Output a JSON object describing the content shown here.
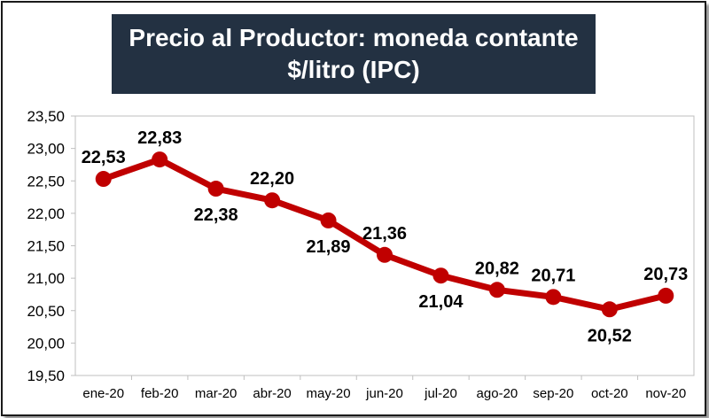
{
  "chart_data": {
    "type": "line",
    "title": "Precio al Productor: moneda contante",
    "subtitle": "$/litro (IPC)",
    "categories": [
      "ene-20",
      "feb-20",
      "mar-20",
      "abr-20",
      "may-20",
      "jun-20",
      "jul-20",
      "ago-20",
      "sep-20",
      "oct-20",
      "nov-20"
    ],
    "values": [
      22.53,
      22.83,
      22.38,
      22.2,
      21.89,
      21.36,
      21.04,
      20.82,
      20.71,
      20.52,
      20.73
    ],
    "data_labels": [
      "22,53",
      "22,83",
      "22,38",
      "22,20",
      "21,89",
      "21,36",
      "21,04",
      "20,82",
      "20,71",
      "20,52",
      "20,73"
    ],
    "label_positions": [
      "above",
      "above",
      "below",
      "above",
      "below",
      "above",
      "below",
      "above",
      "above",
      "below",
      "above"
    ],
    "y_ticks": [
      "19,50",
      "20,00",
      "20,50",
      "21,00",
      "21,50",
      "22,00",
      "22,50",
      "23,00",
      "23,50"
    ],
    "ylim": [
      19.5,
      23.5
    ],
    "xlabel": "",
    "ylabel": "",
    "grid": false,
    "legend": "none",
    "series_color": "#c00000"
  }
}
